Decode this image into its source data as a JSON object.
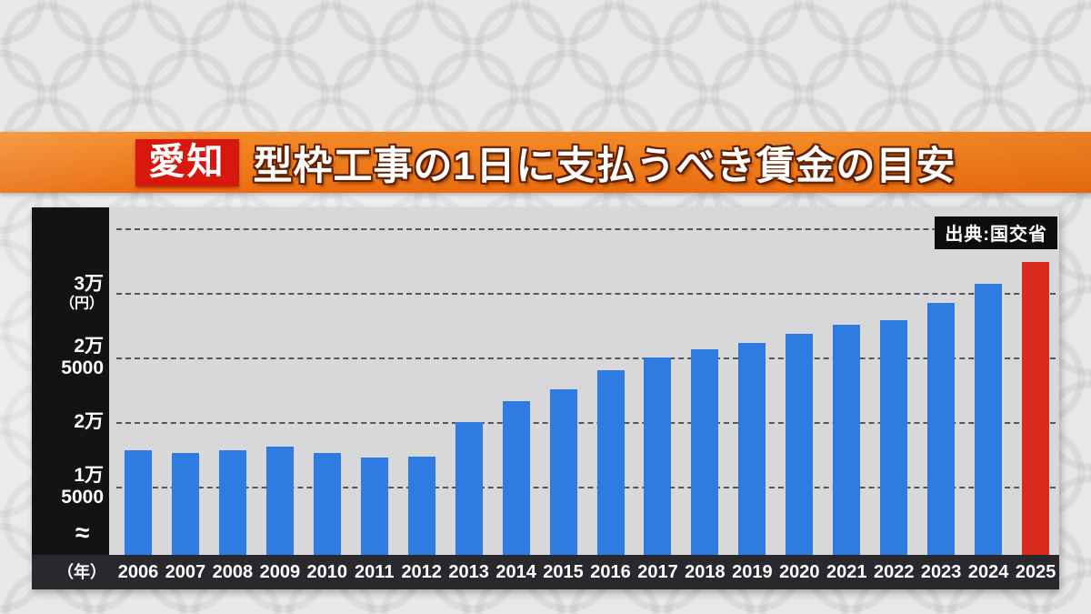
{
  "banner": {
    "prefecture_label": "愛知",
    "title": "型枠工事の1日に支払うべき賃金の目安",
    "banner_color": "#ee7a1c",
    "badge_color": "#d8170f"
  },
  "source_badge": {
    "text": "出典:国交省"
  },
  "chart_data": {
    "type": "bar",
    "title": "愛知 型枠工事の1日に支払うべき賃金の目安",
    "xlabel": "年",
    "ylabel": "円",
    "x_axis_label": "（年）",
    "axis_break_symbol": "≈",
    "grid": "dashed horizontal",
    "legend": "none",
    "ylim_display": [
      10000,
      36000
    ],
    "categories": [
      "2006",
      "2007",
      "2008",
      "2009",
      "2010",
      "2011",
      "2012",
      "2013",
      "2014",
      "2015",
      "2016",
      "2017",
      "2018",
      "2019",
      "2020",
      "2021",
      "2022",
      "2023",
      "2024",
      "2025"
    ],
    "values": [
      17800,
      17600,
      17800,
      18100,
      17600,
      17200,
      17300,
      20000,
      21600,
      22500,
      24000,
      25000,
      25600,
      26100,
      26800,
      27500,
      27900,
      29200,
      30700,
      32400
    ],
    "bar_color_default": "#2e7ce2",
    "bar_color_highlight": "#da291d",
    "highlight_year": "2025",
    "y_ticks": [
      {
        "value": 35000,
        "label": "",
        "sublabel": ""
      },
      {
        "value": 30000,
        "label": "3万",
        "sublabel": "（円）"
      },
      {
        "value": 25000,
        "label": "2万5000",
        "sublabel": ""
      },
      {
        "value": 20000,
        "label": "2万",
        "sublabel": ""
      },
      {
        "value": 15000,
        "label": "1万5000",
        "sublabel": ""
      }
    ]
  }
}
